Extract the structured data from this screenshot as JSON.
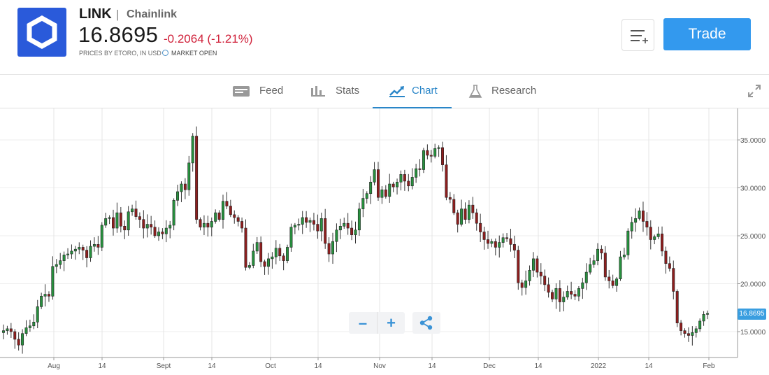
{
  "instrument": {
    "symbol": "LINK",
    "separator": "|",
    "name": "Chainlink",
    "price": "16.8695",
    "change": "-0.2064 (-1.21%)",
    "source_note": "PRICES BY ETORO, IN USD",
    "market_status": "MARKET OPEN"
  },
  "actions": {
    "watchlist_icon": "add-to-list-icon",
    "trade_label": "Trade"
  },
  "tabs": [
    {
      "label": "Feed",
      "icon": "feed-icon",
      "active": false
    },
    {
      "label": "Stats",
      "icon": "stats-icon",
      "active": false
    },
    {
      "label": "Chart",
      "icon": "chart-icon",
      "active": true
    },
    {
      "label": "Research",
      "icon": "flask-icon",
      "active": false
    }
  ],
  "colors": {
    "up": "#27913e",
    "down": "#8f1e1e",
    "accent": "#2a86c8",
    "trade": "#3399ee"
  },
  "chart_data": {
    "type": "candlestick",
    "x_tick_labels": [
      "Aug",
      "14",
      "Sept",
      "14",
      "Oct",
      "14",
      "Nov",
      "14",
      "Dec",
      "14",
      "2022",
      "14",
      "Feb"
    ],
    "y_tick_labels": [
      "35.0000",
      "30.0000",
      "25.0000",
      "20.0000",
      "15.0000"
    ],
    "y_ticks": [
      35,
      30,
      25,
      20,
      15
    ],
    "ylim": [
      12.5,
      38
    ],
    "last_price_label": "16.8695",
    "close_series": [
      15.1,
      15.3,
      15.0,
      14.2,
      13.6,
      14.8,
      15.4,
      15.6,
      16.0,
      17.6,
      18.7,
      18.9,
      18.7,
      21.8,
      22.0,
      22.4,
      23.0,
      23.1,
      23.4,
      23.6,
      23.8,
      23.5,
      22.7,
      23.9,
      24.1,
      23.8,
      26.1,
      26.8,
      26.9,
      25.8,
      27.4,
      26.0,
      25.6,
      27.5,
      27.8,
      27.0,
      26.7,
      25.8,
      26.2,
      25.9,
      25.0,
      25.4,
      25.2,
      25.8,
      26.1,
      28.7,
      29.6,
      30.4,
      29.8,
      32.6,
      35.4,
      26.7,
      25.9,
      26.3,
      25.9,
      26.5,
      27.4,
      26.7,
      28.6,
      28.1,
      27.2,
      26.9,
      26.5,
      25.8,
      21.7,
      21.9,
      23.4,
      24.3,
      22.3,
      21.8,
      22.6,
      22.8,
      23.7,
      22.9,
      22.4,
      23.8,
      25.9,
      26.1,
      26.2,
      26.9,
      26.4,
      26.6,
      26.2,
      25.5,
      26.8,
      24.2,
      23.1,
      24.4,
      25.6,
      26.0,
      26.3,
      25.8,
      25.1,
      25.6,
      27.8,
      28.9,
      29.4,
      30.6,
      31.9,
      29.0,
      29.8,
      29.1,
      30.4,
      30.1,
      30.6,
      31.4,
      30.7,
      30.2,
      31.1,
      32.0,
      31.9,
      33.9,
      33.4,
      33.3,
      34.1,
      34.2,
      32.4,
      29.0,
      28.8,
      27.4,
      26.2,
      27.8,
      26.7,
      28.2,
      27.4,
      26.3,
      25.4,
      24.6,
      24.2,
      24.4,
      23.8,
      24.3,
      24.8,
      24.7,
      24.1,
      23.5,
      20.1,
      19.6,
      20.3,
      21.4,
      22.6,
      21.2,
      20.8,
      19.9,
      19.1,
      18.4,
      19.5,
      18.1,
      18.6,
      19.2,
      18.9,
      18.7,
      19.5,
      20.1,
      21.2,
      22.0,
      22.4,
      23.6,
      23.2,
      20.7,
      20.3,
      19.8,
      20.5,
      22.8,
      23.0,
      25.5,
      26.4,
      26.8,
      27.6,
      26.5,
      25.9,
      24.6,
      24.9,
      25.2,
      23.4,
      22.1,
      21.6,
      19.2,
      15.9,
      15.1,
      14.8,
      14.6,
      14.9,
      15.3,
      16.1,
      16.8,
      16.9
    ]
  }
}
